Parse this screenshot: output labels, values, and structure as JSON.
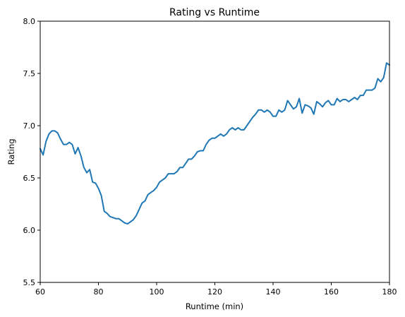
{
  "chart_data": {
    "type": "line",
    "title": "Rating vs Runtime",
    "xlabel": "Runtime (min)",
    "ylabel": "Rating",
    "xlim": [
      60,
      180
    ],
    "ylim": [
      5.5,
      8.0
    ],
    "xticks": [
      60,
      80,
      100,
      120,
      140,
      160,
      180
    ],
    "yticks": [
      "5.5",
      "6.0",
      "6.5",
      "7.0",
      "7.5",
      "8.0"
    ],
    "grid": false,
    "legend": "none",
    "line_color": "#1f77b4",
    "series": [
      {
        "x": [
          60,
          61,
          62,
          63,
          64,
          65,
          66,
          67,
          68,
          69,
          70,
          71,
          72,
          73,
          74,
          75,
          76,
          77,
          78,
          79,
          80,
          81,
          82,
          83,
          84,
          85,
          86,
          87,
          88,
          89,
          90,
          91,
          92,
          93,
          94,
          95,
          96,
          97,
          98,
          99,
          100,
          101,
          102,
          103,
          104,
          105,
          106,
          107,
          108,
          109,
          110,
          111,
          112,
          113,
          114,
          115,
          116,
          117,
          118,
          119,
          120,
          121,
          122,
          123,
          124,
          125,
          126,
          127,
          128,
          129,
          130,
          131,
          132,
          133,
          134,
          135,
          136,
          137,
          138,
          139,
          140,
          141,
          142,
          143,
          144,
          145,
          146,
          147,
          148,
          149,
          150,
          151,
          152,
          153,
          154,
          155,
          156,
          157,
          158,
          159,
          160,
          161,
          162,
          163,
          164,
          165,
          166,
          167,
          168,
          169,
          170,
          171,
          172,
          173,
          174,
          175,
          176,
          177,
          178,
          179,
          180
        ],
        "y": [
          6.78,
          6.72,
          6.85,
          6.92,
          6.95,
          6.95,
          6.93,
          6.87,
          6.82,
          6.82,
          6.84,
          6.82,
          6.73,
          6.79,
          6.71,
          6.6,
          6.55,
          6.58,
          6.46,
          6.45,
          6.4,
          6.33,
          6.18,
          6.16,
          6.13,
          6.12,
          6.11,
          6.11,
          6.09,
          6.07,
          6.06,
          6.08,
          6.1,
          6.14,
          6.2,
          6.26,
          6.28,
          6.34,
          6.36,
          6.38,
          6.41,
          6.46,
          6.48,
          6.5,
          6.54,
          6.54,
          6.54,
          6.56,
          6.6,
          6.6,
          6.64,
          6.68,
          6.68,
          6.71,
          6.75,
          6.76,
          6.76,
          6.82,
          6.86,
          6.88,
          6.88,
          6.9,
          6.92,
          6.9,
          6.92,
          6.96,
          6.98,
          6.96,
          6.98,
          6.96,
          6.96,
          7.0,
          7.04,
          7.08,
          7.11,
          7.15,
          7.15,
          7.13,
          7.15,
          7.13,
          7.09,
          7.09,
          7.15,
          7.13,
          7.15,
          7.24,
          7.2,
          7.16,
          7.18,
          7.26,
          7.12,
          7.2,
          7.19,
          7.17,
          7.11,
          7.23,
          7.21,
          7.18,
          7.22,
          7.24,
          7.2,
          7.2,
          7.26,
          7.23,
          7.25,
          7.25,
          7.23,
          7.25,
          7.27,
          7.25,
          7.29,
          7.29,
          7.34,
          7.34,
          7.34,
          7.36,
          7.45,
          7.42,
          7.46,
          7.6,
          7.58
        ]
      }
    ]
  }
}
